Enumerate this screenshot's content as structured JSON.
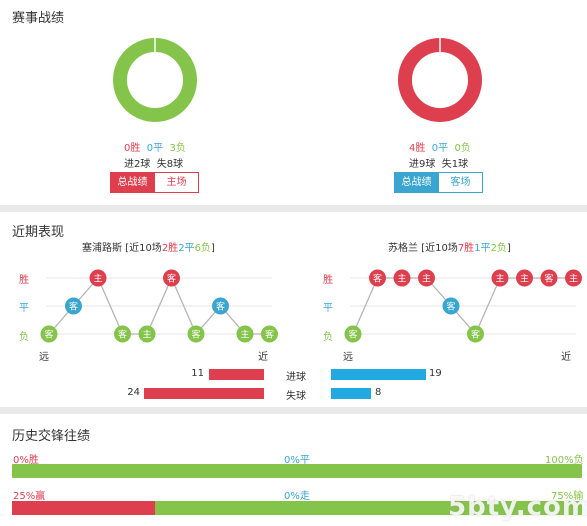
{
  "overall": {
    "title": "赛事战绩",
    "left": {
      "win_label": "0胜",
      "draw_label": "0平",
      "loss_label": "3负",
      "goals_text": "进2球  失8球",
      "win_share": 0,
      "draw_share": 0,
      "loss_share": 1,
      "btn_all": "总战绩",
      "btn_venue": "主场"
    },
    "right": {
      "win_label": "4胜",
      "draw_label": "0平",
      "loss_label": "0负",
      "goals_text": "进9球  失1球",
      "win_share": 1,
      "draw_share": 0,
      "loss_share": 0,
      "btn_all": "总战绩",
      "btn_venue": "客场"
    },
    "colors": {
      "win": "#dd3f4f",
      "draw": "#3aa6cf",
      "loss": "#85c44a"
    }
  },
  "recent": {
    "title": "近期表现",
    "row_labels": {
      "win": "胜",
      "draw": "平",
      "loss": "负"
    },
    "far_label": "远",
    "near_label": "近",
    "left_team": {
      "name": "塞浦路斯",
      "summary_prefix": " [近10场",
      "wins": "2胜",
      "draws": "2平",
      "losses": "6负",
      "summary_suffix": "]",
      "matches": [
        {
          "result": "loss",
          "venue": "客"
        },
        {
          "result": "draw",
          "venue": "客"
        },
        {
          "result": "win",
          "venue": "主"
        },
        {
          "result": "loss",
          "venue": "客"
        },
        {
          "result": "loss",
          "venue": "主"
        },
        {
          "result": "win",
          "venue": "客"
        },
        {
          "result": "loss",
          "venue": "客"
        },
        {
          "result": "draw",
          "venue": "客"
        },
        {
          "result": "loss",
          "venue": "主"
        },
        {
          "result": "loss",
          "venue": "客"
        }
      ]
    },
    "right_team": {
      "name": "苏格兰",
      "summary_prefix": " [近10场",
      "wins": "7胜",
      "draws": "1平",
      "losses": "2负",
      "summary_suffix": "]",
      "matches": [
        {
          "result": "loss",
          "venue": "客"
        },
        {
          "result": "win",
          "venue": "客"
        },
        {
          "result": "win",
          "venue": "主"
        },
        {
          "result": "win",
          "venue": "主"
        },
        {
          "result": "draw",
          "venue": "客"
        },
        {
          "result": "loss",
          "venue": "客"
        },
        {
          "result": "win",
          "venue": "主"
        },
        {
          "result": "win",
          "venue": "主"
        },
        {
          "result": "win",
          "venue": "客"
        },
        {
          "result": "win",
          "venue": "主"
        }
      ]
    },
    "stats": {
      "scored_label": "进球",
      "conceded_label": "失球",
      "left_scored": 11,
      "left_conceded": 24,
      "right_scored": 19,
      "right_conceded": 8,
      "max_value": 24
    }
  },
  "h2h": {
    "title": "历史交锋往绩",
    "row1": {
      "left": "0%胜",
      "mid": "0%平",
      "right": "100%负",
      "red_share": 0
    },
    "row2": {
      "left": "25%赢",
      "mid": "0%走",
      "right": "75%输",
      "red_share": 0.25
    }
  },
  "watermark": "5bty.com"
}
